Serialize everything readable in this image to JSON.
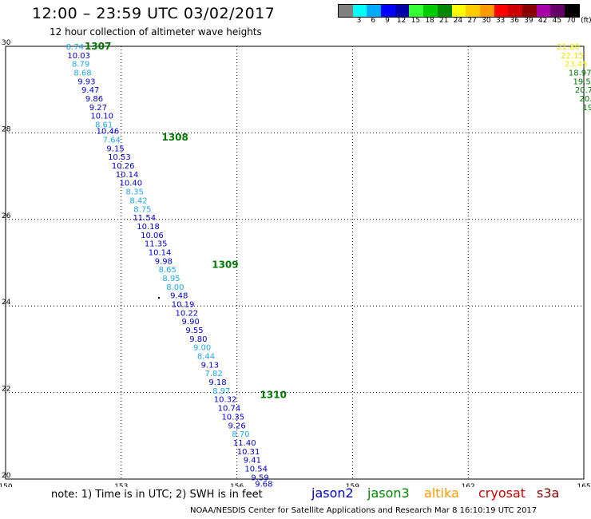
{
  "header": {
    "title": "12:00 – 23:59 UTC 03/02/2017",
    "subtitle": "12 hour collection of altimeter wave heights"
  },
  "legend": {
    "unit": "(ft)",
    "items": [
      {
        "color": "#808080",
        "label": ""
      },
      {
        "color": "#00ffff",
        "label": "3"
      },
      {
        "color": "#00aaff",
        "label": "6"
      },
      {
        "color": "#0000ff",
        "label": "9"
      },
      {
        "color": "#0000aa",
        "label": "12"
      },
      {
        "color": "#33ff33",
        "label": "15"
      },
      {
        "color": "#00cc00",
        "label": "18"
      },
      {
        "color": "#008800",
        "label": "21"
      },
      {
        "color": "#ffff00",
        "label": "24"
      },
      {
        "color": "#ffcc00",
        "label": "27"
      },
      {
        "color": "#ff9900",
        "label": "30"
      },
      {
        "color": "#ff0000",
        "label": "33"
      },
      {
        "color": "#cc0000",
        "label": "36"
      },
      {
        "color": "#880000",
        "label": "39"
      },
      {
        "color": "#aa00aa",
        "label": "42"
      },
      {
        "color": "#660066",
        "label": "45"
      },
      {
        "color": "#000000",
        "label": "70"
      }
    ]
  },
  "map": {
    "lon_range": [
      150,
      165
    ],
    "lat_range": [
      20,
      30
    ],
    "x_ticks": [
      "150",
      "153",
      "156",
      "159",
      "162",
      "165"
    ],
    "y_ticks": [
      "30",
      "28",
      "26",
      "24",
      "22",
      "20"
    ],
    "colors": {
      "cyan": "#1ea8e8",
      "blue": "#0000cc",
      "green": "#007700",
      "yellow": "#e8e800",
      "darkgreen": "#007700",
      "black": "#000000"
    },
    "passes": [
      {
        "label": "1307",
        "lon": 152.05,
        "lat": 30.0
      },
      {
        "label": "1308",
        "lon": 154.05,
        "lat": 27.9
      },
      {
        "label": "1309",
        "lon": 155.35,
        "lat": 24.95
      },
      {
        "label": "1310",
        "lon": 156.6,
        "lat": 21.95
      }
    ],
    "track": [
      {
        "v": "8.74",
        "lon": 151.8,
        "lat": 30.0,
        "c": "cyan"
      },
      {
        "v": "10.03",
        "lon": 151.9,
        "lat": 29.8,
        "c": "blue"
      },
      {
        "v": "8.79",
        "lon": 151.95,
        "lat": 29.6,
        "c": "cyan"
      },
      {
        "v": "8.68",
        "lon": 152.0,
        "lat": 29.4,
        "c": "cyan"
      },
      {
        "v": "9.93",
        "lon": 152.1,
        "lat": 29.2,
        "c": "blue"
      },
      {
        "v": "9.47",
        "lon": 152.2,
        "lat": 29.0,
        "c": "blue"
      },
      {
        "v": "9.86",
        "lon": 152.3,
        "lat": 28.8,
        "c": "blue"
      },
      {
        "v": "9.27",
        "lon": 152.4,
        "lat": 28.6,
        "c": "blue"
      },
      {
        "v": "10.10",
        "lon": 152.5,
        "lat": 28.4,
        "c": "blue"
      },
      {
        "v": "8.61",
        "lon": 152.55,
        "lat": 28.2,
        "c": "cyan"
      },
      {
        "v": "10.46",
        "lon": 152.65,
        "lat": 28.05,
        "c": "blue"
      },
      {
        "v": "7.64",
        "lon": 152.75,
        "lat": 27.85,
        "c": "cyan"
      },
      {
        "v": "9.15",
        "lon": 152.85,
        "lat": 27.65,
        "c": "blue"
      },
      {
        "v": "10.53",
        "lon": 152.95,
        "lat": 27.45,
        "c": "blue"
      },
      {
        "v": "10.26",
        "lon": 153.05,
        "lat": 27.25,
        "c": "blue"
      },
      {
        "v": "10.14",
        "lon": 153.15,
        "lat": 27.05,
        "c": "blue"
      },
      {
        "v": "10.40",
        "lon": 153.25,
        "lat": 26.85,
        "c": "blue"
      },
      {
        "v": "8.35",
        "lon": 153.35,
        "lat": 26.65,
        "c": "cyan"
      },
      {
        "v": "8.42",
        "lon": 153.45,
        "lat": 26.45,
        "c": "cyan"
      },
      {
        "v": "8.75",
        "lon": 153.55,
        "lat": 26.25,
        "c": "cyan"
      },
      {
        "v": "11.54",
        "lon": 153.6,
        "lat": 26.05,
        "c": "blue"
      },
      {
        "v": "10.18",
        "lon": 153.7,
        "lat": 25.85,
        "c": "blue"
      },
      {
        "v": "10.06",
        "lon": 153.8,
        "lat": 25.65,
        "c": "blue"
      },
      {
        "v": "11.35",
        "lon": 153.9,
        "lat": 25.45,
        "c": "blue"
      },
      {
        "v": "10.14",
        "lon": 154.0,
        "lat": 25.25,
        "c": "blue"
      },
      {
        "v": "9.98",
        "lon": 154.1,
        "lat": 25.05,
        "c": "blue"
      },
      {
        "v": "8.65",
        "lon": 154.2,
        "lat": 24.85,
        "c": "cyan"
      },
      {
        "v": "8.95",
        "lon": 154.3,
        "lat": 24.65,
        "c": "cyan"
      },
      {
        "v": "8.00",
        "lon": 154.4,
        "lat": 24.45,
        "c": "cyan"
      },
      {
        "v": "9.48",
        "lon": 154.5,
        "lat": 24.25,
        "c": "blue"
      },
      {
        "v": "10.19",
        "lon": 154.6,
        "lat": 24.05,
        "c": "blue"
      },
      {
        "v": "10.22",
        "lon": 154.7,
        "lat": 23.85,
        "c": "blue"
      },
      {
        "v": "9.90",
        "lon": 154.8,
        "lat": 23.65,
        "c": "blue"
      },
      {
        "v": "9.55",
        "lon": 154.9,
        "lat": 23.45,
        "c": "blue"
      },
      {
        "v": "9.80",
        "lon": 155.0,
        "lat": 23.25,
        "c": "blue"
      },
      {
        "v": "9.00",
        "lon": 155.1,
        "lat": 23.05,
        "c": "cyan"
      },
      {
        "v": "8.44",
        "lon": 155.2,
        "lat": 22.85,
        "c": "cyan"
      },
      {
        "v": "9.13",
        "lon": 155.3,
        "lat": 22.65,
        "c": "blue"
      },
      {
        "v": "7.82",
        "lon": 155.4,
        "lat": 22.45,
        "c": "cyan"
      },
      {
        "v": "9.18",
        "lon": 155.5,
        "lat": 22.25,
        "c": "blue"
      },
      {
        "v": "8.97",
        "lon": 155.6,
        "lat": 22.05,
        "c": "cyan"
      },
      {
        "v": "10.32",
        "lon": 155.7,
        "lat": 21.85,
        "c": "blue"
      },
      {
        "v": "10.74",
        "lon": 155.8,
        "lat": 21.65,
        "c": "blue"
      },
      {
        "v": "10.35",
        "lon": 155.9,
        "lat": 21.45,
        "c": "blue"
      },
      {
        "v": "9.26",
        "lon": 156.0,
        "lat": 21.25,
        "c": "blue"
      },
      {
        "v": "8.70",
        "lon": 156.1,
        "lat": 21.05,
        "c": "cyan"
      },
      {
        "v": "11.40",
        "lon": 156.2,
        "lat": 20.85,
        "c": "blue"
      },
      {
        "v": "10.31",
        "lon": 156.3,
        "lat": 20.65,
        "c": "blue"
      },
      {
        "v": "9.41",
        "lon": 156.4,
        "lat": 20.45,
        "c": "blue"
      },
      {
        "v": "10.54",
        "lon": 156.5,
        "lat": 20.25,
        "c": "blue"
      },
      {
        "v": "9.59",
        "lon": 156.6,
        "lat": 20.05,
        "c": "blue"
      },
      {
        "v": "9.68",
        "lon": 156.7,
        "lat": 19.9,
        "c": "blue"
      }
    ],
    "east_track": [
      {
        "v": "21.80",
        "lon": 164.6,
        "lat": 30.0,
        "c": "yellow"
      },
      {
        "v": "22.15",
        "lon": 164.7,
        "lat": 29.8,
        "c": "yellow"
      },
      {
        "v": "23.45",
        "lon": 164.8,
        "lat": 29.6,
        "c": "yellow"
      },
      {
        "v": "18.97",
        "lon": 164.9,
        "lat": 29.4,
        "c": "darkgreen"
      },
      {
        "v": "19.5",
        "lon": 164.95,
        "lat": 29.2,
        "c": "darkgreen"
      },
      {
        "v": "20.7",
        "lon": 165.0,
        "lat": 29.0,
        "c": "darkgreen"
      },
      {
        "v": "20.",
        "lon": 165.05,
        "lat": 28.8,
        "c": "darkgreen"
      },
      {
        "v": "19",
        "lon": 165.1,
        "lat": 28.6,
        "c": "darkgreen"
      }
    ]
  },
  "footer": {
    "note": "note: 1) Time is in UTC; 2) SWH is in feet",
    "satellites": [
      {
        "name": "jason2",
        "color": "#0000cc"
      },
      {
        "name": "jason3",
        "color": "#008800"
      },
      {
        "name": "altika",
        "color": "#ff9900"
      },
      {
        "name": "cryosat",
        "color": "#cc0000"
      },
      {
        "name": "s3a",
        "color": "#880000"
      }
    ],
    "credit": "NOAA/NESDIS Center for Satellite Applications and Research   Mar  8 16:10:19 UTC 2017"
  }
}
